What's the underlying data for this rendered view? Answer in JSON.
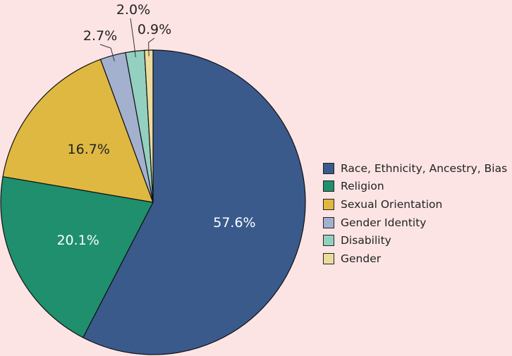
{
  "chart_data": {
    "type": "pie",
    "title": "",
    "categories": [
      "Race, Ethnicity, Ancestry, Bias",
      "Religion",
      "Sexual Orientation",
      "Gender Identity",
      "Disability",
      "Gender"
    ],
    "values": [
      57.6,
      20.1,
      16.7,
      2.7,
      2.0,
      0.9
    ],
    "labels": [
      "57.6%",
      "20.1%",
      "16.7%",
      "2.7%",
      "2.0%",
      "0.9%"
    ],
    "colors": [
      "#3a5a8c",
      "#1f8f6e",
      "#dfb842",
      "#a3b1cf",
      "#94d0bf",
      "#ecdc9c"
    ],
    "label_colors": [
      "#ffffff",
      "#ffffff",
      "#222222",
      "#222222",
      "#222222",
      "#222222"
    ],
    "start_angle_deg": 0,
    "direction": "clockwise",
    "legend_position": "right"
  }
}
